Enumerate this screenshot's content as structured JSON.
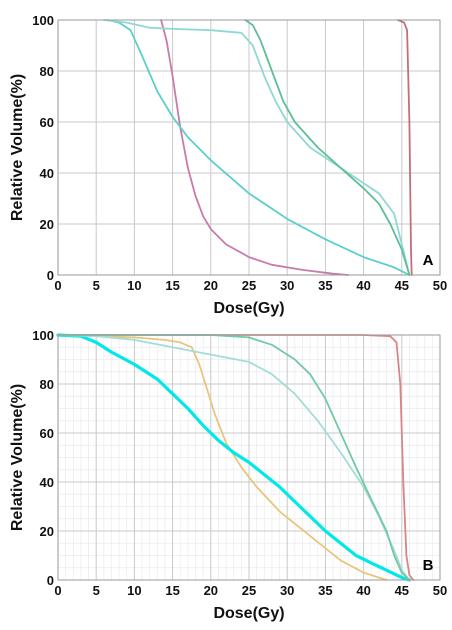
{
  "chart_data": [
    {
      "type": "line",
      "panel_label": "A",
      "xlabel": "Dose(Gy)",
      "ylabel": "Relative Volume(%)",
      "xlim": [
        0,
        50
      ],
      "ylim": [
        0,
        100
      ],
      "xticks": [
        0,
        5,
        10,
        15,
        20,
        25,
        30,
        35,
        40,
        45,
        50
      ],
      "yticks": [
        0,
        20,
        40,
        60,
        80,
        100
      ],
      "grid": "major",
      "series": [
        {
          "color": "#c0707a",
          "x": [
            44.5,
            45.3,
            45.7,
            46.0,
            46.2,
            46.3
          ],
          "y": [
            100,
            99,
            96,
            60,
            10,
            0
          ]
        },
        {
          "color": "#c87bab",
          "x": [
            13.5,
            14.2,
            15,
            16,
            17,
            18,
            19,
            20,
            22,
            25,
            28,
            32,
            36,
            38
          ],
          "y": [
            100,
            92,
            78,
            58,
            42,
            31,
            23,
            18,
            12,
            7,
            4,
            2,
            0.5,
            0
          ]
        },
        {
          "color": "#5ccfcb",
          "x": [
            6.5,
            8,
            9.5,
            11,
            13,
            15,
            17,
            20,
            25,
            30,
            35,
            40,
            44,
            46
          ],
          "y": [
            100,
            99,
            96,
            86,
            72,
            62,
            54,
            45,
            32,
            22,
            14,
            7,
            3,
            0
          ]
        },
        {
          "color": "#8fd8d4",
          "x": [
            6,
            9,
            12,
            15,
            20,
            24,
            25.5,
            27,
            28.5,
            30,
            33,
            36,
            39,
            42,
            44,
            45,
            46
          ],
          "y": [
            100,
            99,
            97,
            96.5,
            96,
            95,
            90,
            78,
            68,
            60,
            50,
            44,
            38,
            32,
            24,
            12,
            0
          ]
        },
        {
          "color": "#5dbf98",
          "x": [
            24.5,
            25.5,
            26.5,
            28,
            29.5,
            31,
            34,
            37,
            40,
            42,
            43.5,
            45,
            46
          ],
          "y": [
            100,
            98,
            92,
            80,
            68,
            60,
            50,
            42,
            34,
            28,
            20,
            10,
            0
          ]
        }
      ]
    },
    {
      "type": "line",
      "panel_label": "B",
      "xlabel": "Dose(Gy)",
      "ylabel": "Relative Volume(%)",
      "xlim": [
        0,
        50
      ],
      "ylim": [
        0,
        100
      ],
      "xticks": [
        0,
        5,
        10,
        15,
        20,
        25,
        30,
        35,
        40,
        45,
        50
      ],
      "yticks": [
        0,
        20,
        40,
        60,
        80,
        100
      ],
      "grid": "major and minor",
      "series": [
        {
          "color": "#d98585",
          "x": [
            0,
            40,
            43.5,
            44.3,
            44.8,
            45.2,
            45.6,
            46,
            46.5
          ],
          "y": [
            100,
            100,
            99.5,
            97,
            80,
            40,
            10,
            2,
            0
          ]
        },
        {
          "color": "#e8c57c",
          "x": [
            0,
            5,
            10,
            14,
            16,
            17.5,
            18.5,
            19.5,
            20.5,
            22,
            24,
            26,
            29,
            33,
            37,
            40,
            43
          ],
          "y": [
            100,
            99.5,
            99,
            98,
            97,
            95,
            88,
            78,
            68,
            56,
            46,
            38,
            28,
            18,
            8,
            3,
            0
          ]
        },
        {
          "color": "#00e8e8",
          "x": [
            0,
            3,
            5,
            7,
            10,
            13,
            15,
            17,
            19,
            21,
            23,
            25,
            27,
            29,
            31,
            33,
            35,
            37,
            39,
            41,
            43,
            45,
            46
          ],
          "y": [
            100,
            99.5,
            97,
            93,
            88,
            82,
            76,
            70,
            63,
            57,
            52,
            48,
            43,
            38,
            32,
            26,
            20,
            15,
            10,
            7,
            4,
            1,
            0
          ]
        },
        {
          "color": "#a3dcd9",
          "x": [
            0,
            5,
            10,
            15,
            20,
            25,
            28,
            31,
            34,
            37,
            40,
            42,
            44,
            45,
            46
          ],
          "y": [
            100,
            99.5,
            98,
            95,
            92,
            89,
            84,
            76,
            65,
            52,
            38,
            26,
            12,
            4,
            0
          ]
        },
        {
          "color": "#72c9a4",
          "x": [
            0,
            10,
            20,
            25,
            28,
            31,
            33,
            35,
            37,
            39,
            41,
            43,
            44,
            45,
            46
          ],
          "y": [
            100,
            100,
            100,
            99,
            96,
            90,
            84,
            74,
            60,
            46,
            33,
            20,
            10,
            3,
            0
          ]
        }
      ]
    }
  ]
}
